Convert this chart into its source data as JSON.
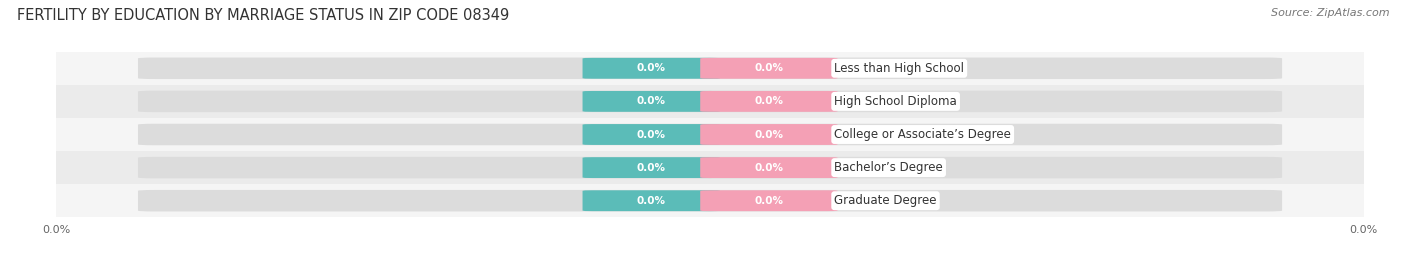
{
  "title": "FERTILITY BY EDUCATION BY MARRIAGE STATUS IN ZIP CODE 08349",
  "source": "Source: ZipAtlas.com",
  "categories": [
    "Less than High School",
    "High School Diploma",
    "College or Associate’s Degree",
    "Bachelor’s Degree",
    "Graduate Degree"
  ],
  "married_values": [
    0.0,
    0.0,
    0.0,
    0.0,
    0.0
  ],
  "unmarried_values": [
    0.0,
    0.0,
    0.0,
    0.0,
    0.0
  ],
  "married_color": "#5bbcb8",
  "unmarried_color": "#f4a0b5",
  "bar_bg_color": "#dcdcdc",
  "title_fontsize": 10.5,
  "source_fontsize": 8,
  "category_fontsize": 8.5,
  "value_fontsize": 7.5,
  "legend_fontsize": 9,
  "background_color": "#ffffff",
  "row_even_color": "#f5f5f5",
  "row_odd_color": "#ebebeb"
}
